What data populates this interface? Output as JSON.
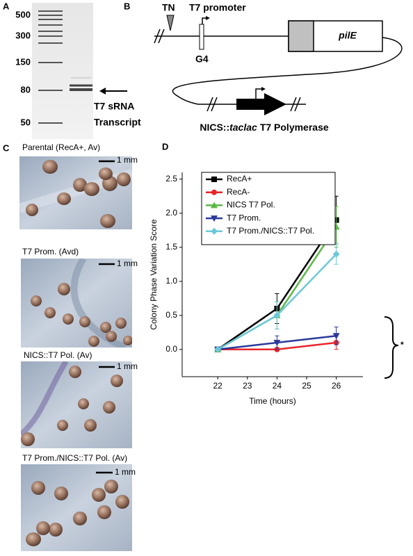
{
  "panels": {
    "A": {
      "label": "A",
      "ladder": [
        "500",
        "300",
        "150",
        "80",
        "50"
      ],
      "annotation": [
        "T7 sRNA",
        "Transcript"
      ]
    },
    "B": {
      "label": "B",
      "insertion": "TN",
      "promoter": "T7 promoter",
      "site": "G4",
      "gene": "pilE",
      "construct": {
        "prefix": "NICS::",
        "italic": "taclac",
        "suffix": "T7 Polymerase"
      }
    },
    "C": {
      "label": "C",
      "images": [
        {
          "caption": "Parental (RecA+, Av)",
          "scale": "1 mm"
        },
        {
          "caption": "T7 Prom. (Avd)",
          "scale": "1 mm"
        },
        {
          "caption": "NICS::T7 Pol. (Av)",
          "scale": "1 mm"
        },
        {
          "caption": "T7 Prom./NICS::T7 Pol. (Av)",
          "scale": "1 mm"
        }
      ]
    },
    "D": {
      "label": "D"
    }
  },
  "chart_data": {
    "type": "line",
    "x": [
      22,
      24,
      26
    ],
    "xlim": [
      20.8,
      26.9
    ],
    "xticks": [
      22,
      23,
      24,
      25,
      26
    ],
    "ylim": [
      -0.4,
      2.6
    ],
    "yticks": [
      {
        "value": 0,
        "label": "0.0"
      },
      0.5,
      {
        "value": 1,
        "label": "1.0"
      },
      1.5,
      {
        "value": 2,
        "label": "2.0"
      },
      2.5
    ],
    "xlabel": "Time (hours)",
    "ylabel": "Colony Phase Variation Score",
    "annotation": "*",
    "series": [
      {
        "name": "RecA+",
        "color": "#000000",
        "marker": "square",
        "values": [
          0,
          0.6,
          1.9
        ],
        "errors": [
          0,
          0.22,
          0.35
        ]
      },
      {
        "name": "RecA-",
        "color": "#e8262a",
        "marker": "circle",
        "values": [
          0,
          0,
          0.1
        ],
        "errors": [
          0,
          0,
          0.1
        ]
      },
      {
        "name": "NICS T7 Pol.",
        "color": "#5ab946",
        "marker": "triangle-up",
        "values": [
          0,
          0.5,
          1.8
        ],
        "errors": [
          0,
          0.2,
          0.3
        ]
      },
      {
        "name": "T7 Prom.",
        "color": "#2b3a9a",
        "marker": "triangle-down",
        "values": [
          0,
          0.1,
          0.2
        ],
        "errors": [
          0,
          0.1,
          0.13
        ]
      },
      {
        "name": "T7 Prom./NICS::T7 Pol.",
        "color": "#6cc8d8",
        "marker": "diamond",
        "values": [
          0,
          0.5,
          1.4
        ],
        "errors": [
          0,
          0.2,
          0.15
        ]
      }
    ]
  }
}
